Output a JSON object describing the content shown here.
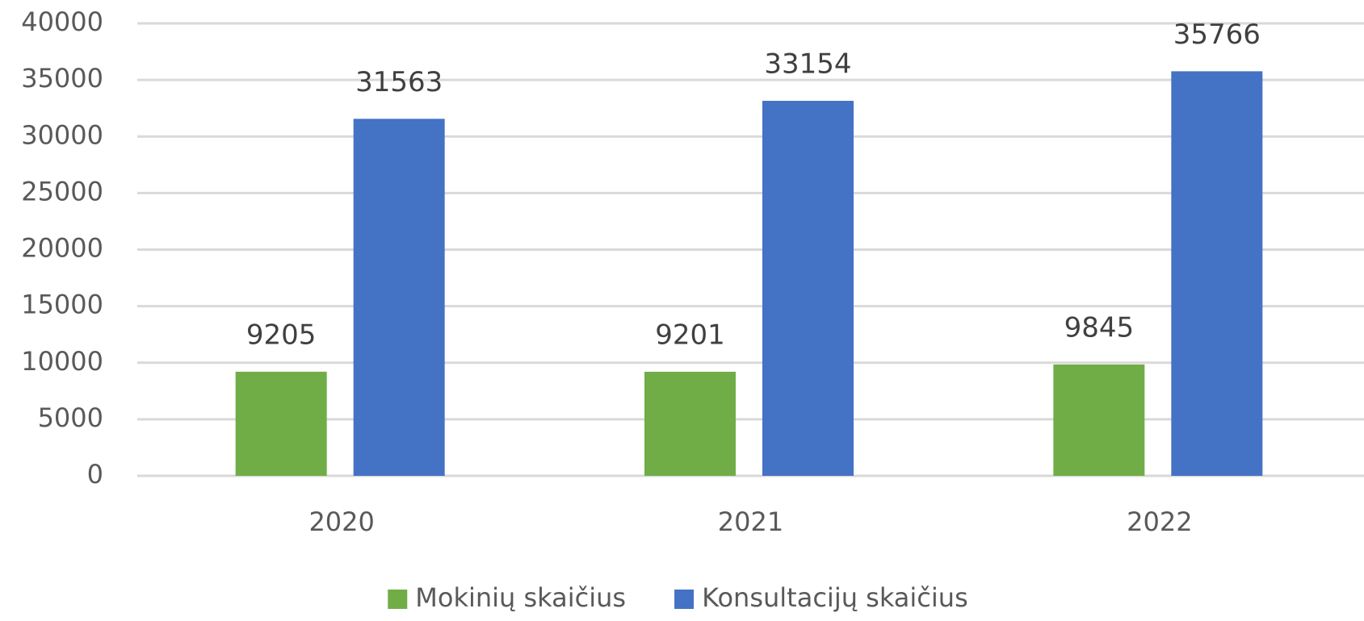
{
  "chart_data": {
    "type": "bar",
    "categories": [
      "2020",
      "2021",
      "2022"
    ],
    "series": [
      {
        "name": "Mokinių skaičius",
        "color": "#70ad47",
        "values": [
          9205,
          9201,
          9845
        ]
      },
      {
        "name": "Konsultacijų skaičius",
        "color": "#4472c4",
        "values": [
          31563,
          33154,
          35766
        ]
      }
    ],
    "ylim": [
      0,
      40000
    ],
    "yticks": [
      0,
      5000,
      10000,
      15000,
      20000,
      25000,
      30000,
      35000,
      40000
    ],
    "grid": true,
    "legend": "bottom"
  }
}
